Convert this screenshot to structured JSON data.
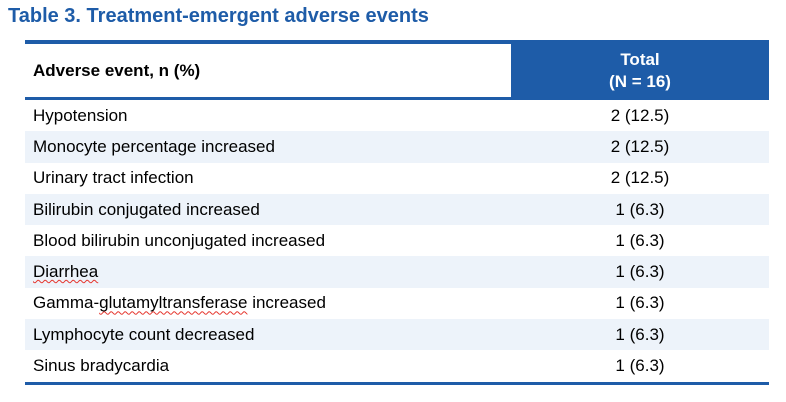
{
  "title": "Table 3. Treatment-emergent adverse events",
  "table": {
    "header": {
      "col1": "Adverse event, n (%)",
      "col2_line1": "Total",
      "col2_line2": "(N = 16)"
    },
    "rows": [
      {
        "event": "Hypotension",
        "value": "2 (12.5)",
        "parts": [
          {
            "text": "Hypotension",
            "misspelled": false
          }
        ]
      },
      {
        "event": "Monocyte percentage increased",
        "value": "2 (12.5)",
        "parts": [
          {
            "text": "Monocyte percentage increased",
            "misspelled": false
          }
        ]
      },
      {
        "event": "Urinary tract infection",
        "value": "2 (12.5)",
        "parts": [
          {
            "text": "Urinary tract infection",
            "misspelled": false
          }
        ]
      },
      {
        "event": "Bilirubin conjugated increased",
        "value": "1 (6.3)",
        "parts": [
          {
            "text": "Bilirubin conjugated increased",
            "misspelled": false
          }
        ]
      },
      {
        "event": "Blood bilirubin unconjugated increased",
        "value": "1 (6.3)",
        "parts": [
          {
            "text": "Blood bilirubin unconjugated increased",
            "misspelled": false
          }
        ]
      },
      {
        "event": "Diarrhea",
        "value": "1 (6.3)",
        "parts": [
          {
            "text": "Diarrhea",
            "misspelled": true
          }
        ]
      },
      {
        "event": "Gamma-glutamyltransferase increased",
        "value": "1 (6.3)",
        "parts": [
          {
            "text": "Gamma-",
            "misspelled": false
          },
          {
            "text": "glutamyltransferase",
            "misspelled": true
          },
          {
            "text": " increased",
            "misspelled": false
          }
        ]
      },
      {
        "event": "Lymphocyte count decreased",
        "value": "1 (6.3)",
        "parts": [
          {
            "text": "Lymphocyte count decreased",
            "misspelled": false
          }
        ]
      },
      {
        "event": "Sinus bradycardia",
        "value": "1 (6.3)",
        "parts": [
          {
            "text": "Sinus bradycardia",
            "misspelled": false
          }
        ]
      }
    ]
  },
  "colors": {
    "accent_blue": "#1E5CA8",
    "stripe": "#EDF3FA",
    "header_text": "#FFFFFF",
    "body_text": "#000000",
    "spellcheck_red": "#E5342C"
  }
}
